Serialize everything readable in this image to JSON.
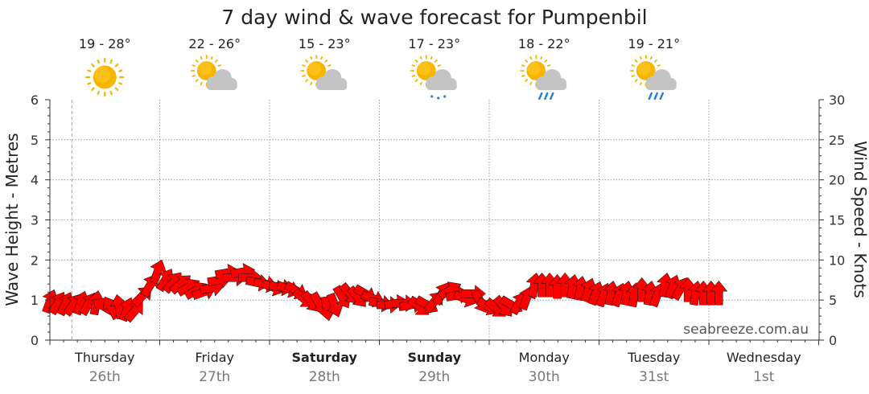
{
  "chart_data": {
    "type": "line",
    "title": "7 day wind & wave forecast for Pumpenbil",
    "ylabel": "Wave Height - Metres",
    "y2label": "Wind Speed - Knots",
    "ylim": [
      0,
      6
    ],
    "yticks": [
      0,
      1,
      2,
      3,
      4,
      5,
      6
    ],
    "y2lim": [
      0,
      30
    ],
    "y2ticks": [
      0,
      5,
      10,
      15,
      20,
      25,
      30
    ],
    "xlim": [
      0,
      7
    ],
    "grid": true,
    "days": [
      {
        "name": "Thursday",
        "date": "26th",
        "bold": false
      },
      {
        "name": "Friday",
        "date": "27th",
        "bold": false
      },
      {
        "name": "Saturday",
        "date": "28th",
        "bold": true
      },
      {
        "name": "Sunday",
        "date": "29th",
        "bold": true
      },
      {
        "name": "Monday",
        "date": "30th",
        "bold": false
      },
      {
        "name": "Tuesday",
        "date": "31st",
        "bold": false
      },
      {
        "name": "Wednesday",
        "date": "1st",
        "bold": false
      }
    ],
    "weather": [
      {
        "temp": "19 - 28°",
        "icon": "sunny-icon"
      },
      {
        "temp": "22 - 26°",
        "icon": "partly-cloudy-icon"
      },
      {
        "temp": "15 - 23°",
        "icon": "partly-cloudy-icon"
      },
      {
        "temp": "17 - 23°",
        "icon": "drizzle-icon"
      },
      {
        "temp": "18 - 22°",
        "icon": "showers-icon"
      },
      {
        "temp": "19 - 21°",
        "icon": "showers-icon"
      }
    ],
    "now_marker_day": 0.2,
    "series": [
      {
        "type": "wind-arrows",
        "units": "knots",
        "color": "#ff0000",
        "points": [
          {
            "day": 0.0,
            "speed": 4.8,
            "dir": 20
          },
          {
            "day": 0.07,
            "speed": 4.6,
            "dir": 30
          },
          {
            "day": 0.14,
            "speed": 4.5,
            "dir": 25
          },
          {
            "day": 0.21,
            "speed": 4.4,
            "dir": 35
          },
          {
            "day": 0.28,
            "speed": 4.6,
            "dir": 20
          },
          {
            "day": 0.35,
            "speed": 4.5,
            "dir": 30
          },
          {
            "day": 0.42,
            "speed": 4.6,
            "dir": 10
          },
          {
            "day": 0.49,
            "speed": 4.2,
            "dir": 300
          },
          {
            "day": 0.56,
            "speed": 4.0,
            "dir": 330
          },
          {
            "day": 0.63,
            "speed": 4.1,
            "dir": 350
          },
          {
            "day": 0.7,
            "speed": 3.8,
            "dir": 20
          },
          {
            "day": 0.77,
            "speed": 3.6,
            "dir": 40
          },
          {
            "day": 0.84,
            "speed": 5.5,
            "dir": 45
          },
          {
            "day": 0.91,
            "speed": 6.8,
            "dir": 30
          },
          {
            "day": 0.98,
            "speed": 8.5,
            "dir": 20
          },
          {
            "day": 1.05,
            "speed": 7.5,
            "dir": 30
          },
          {
            "day": 1.12,
            "speed": 7.2,
            "dir": 40
          },
          {
            "day": 1.19,
            "speed": 7.0,
            "dir": 50
          },
          {
            "day": 1.26,
            "speed": 6.6,
            "dir": 60
          },
          {
            "day": 1.33,
            "speed": 6.2,
            "dir": 60
          },
          {
            "day": 1.4,
            "speed": 6.0,
            "dir": 70
          },
          {
            "day": 1.47,
            "speed": 6.5,
            "dir": 80
          },
          {
            "day": 1.54,
            "speed": 7.5,
            "dir": 80
          },
          {
            "day": 1.61,
            "speed": 8.4,
            "dir": 80
          },
          {
            "day": 1.68,
            "speed": 7.8,
            "dir": 90
          },
          {
            "day": 1.75,
            "speed": 8.5,
            "dir": 80
          },
          {
            "day": 1.82,
            "speed": 7.8,
            "dir": 90
          },
          {
            "day": 1.89,
            "speed": 7.2,
            "dir": 100
          },
          {
            "day": 1.96,
            "speed": 7.0,
            "dir": 100
          },
          {
            "day": 2.03,
            "speed": 6.6,
            "dir": 110
          },
          {
            "day": 2.1,
            "speed": 6.6,
            "dir": 100
          },
          {
            "day": 2.17,
            "speed": 6.4,
            "dir": 110
          },
          {
            "day": 2.24,
            "speed": 6.2,
            "dir": 120
          },
          {
            "day": 2.31,
            "speed": 5.2,
            "dir": 130
          },
          {
            "day": 2.38,
            "speed": 4.8,
            "dir": 140
          },
          {
            "day": 2.45,
            "speed": 4.6,
            "dir": 150
          },
          {
            "day": 2.52,
            "speed": 4.0,
            "dir": 170
          },
          {
            "day": 2.59,
            "speed": 4.4,
            "dir": 160
          },
          {
            "day": 2.66,
            "speed": 5.4,
            "dir": 150
          },
          {
            "day": 2.73,
            "speed": 5.8,
            "dir": 140
          },
          {
            "day": 2.8,
            "speed": 5.4,
            "dir": 140
          },
          {
            "day": 2.87,
            "speed": 5.8,
            "dir": 120
          },
          {
            "day": 2.94,
            "speed": 5.2,
            "dir": 110
          },
          {
            "day": 3.01,
            "speed": 4.6,
            "dir": 100
          },
          {
            "day": 3.08,
            "speed": 4.4,
            "dir": 90
          },
          {
            "day": 3.15,
            "speed": 4.6,
            "dir": 80
          },
          {
            "day": 3.22,
            "speed": 4.6,
            "dir": 90
          },
          {
            "day": 3.29,
            "speed": 4.4,
            "dir": 80
          },
          {
            "day": 3.36,
            "speed": 4.2,
            "dir": 130
          },
          {
            "day": 3.43,
            "speed": 4.4,
            "dir": 120
          },
          {
            "day": 3.5,
            "speed": 4.8,
            "dir": 40
          },
          {
            "day": 3.57,
            "speed": 5.8,
            "dir": 30
          },
          {
            "day": 3.64,
            "speed": 6.2,
            "dir": 60
          },
          {
            "day": 3.71,
            "speed": 5.6,
            "dir": 80
          },
          {
            "day": 3.78,
            "speed": 5.2,
            "dir": 110
          },
          {
            "day": 3.85,
            "speed": 5.8,
            "dir": 90
          },
          {
            "day": 3.92,
            "speed": 4.8,
            "dir": 150
          },
          {
            "day": 3.99,
            "speed": 4.2,
            "dir": 120
          },
          {
            "day": 4.06,
            "speed": 4.0,
            "dir": 130
          },
          {
            "day": 4.13,
            "speed": 4.2,
            "dir": 140
          },
          {
            "day": 4.2,
            "speed": 4.4,
            "dir": 120
          },
          {
            "day": 4.27,
            "speed": 4.6,
            "dir": 30
          },
          {
            "day": 4.34,
            "speed": 5.2,
            "dir": 20
          },
          {
            "day": 4.41,
            "speed": 6.8,
            "dir": 10
          },
          {
            "day": 4.48,
            "speed": 6.8,
            "dir": 0
          },
          {
            "day": 4.55,
            "speed": 6.8,
            "dir": 0
          },
          {
            "day": 4.62,
            "speed": 6.6,
            "dir": 0
          },
          {
            "day": 4.69,
            "speed": 6.8,
            "dir": 0
          },
          {
            "day": 4.76,
            "speed": 6.6,
            "dir": 10
          },
          {
            "day": 4.83,
            "speed": 6.4,
            "dir": 10
          },
          {
            "day": 4.9,
            "speed": 6.2,
            "dir": 20
          },
          {
            "day": 4.97,
            "speed": 5.8,
            "dir": 20
          },
          {
            "day": 5.04,
            "speed": 5.6,
            "dir": 20
          },
          {
            "day": 5.11,
            "speed": 5.8,
            "dir": 10
          },
          {
            "day": 5.18,
            "speed": 5.6,
            "dir": 20
          },
          {
            "day": 5.25,
            "speed": 5.8,
            "dir": 10
          },
          {
            "day": 5.32,
            "speed": 5.6,
            "dir": 10
          },
          {
            "day": 5.39,
            "speed": 6.2,
            "dir": 0
          },
          {
            "day": 5.46,
            "speed": 5.8,
            "dir": 10
          },
          {
            "day": 5.53,
            "speed": 5.6,
            "dir": 20
          },
          {
            "day": 5.6,
            "speed": 6.8,
            "dir": 10
          },
          {
            "day": 5.67,
            "speed": 6.6,
            "dir": 20
          },
          {
            "day": 5.74,
            "speed": 6.4,
            "dir": 30
          },
          {
            "day": 5.81,
            "speed": 6.2,
            "dir": 0
          },
          {
            "day": 5.88,
            "speed": 5.8,
            "dir": 10
          },
          {
            "day": 5.95,
            "speed": 5.8,
            "dir": 0
          },
          {
            "day": 6.02,
            "speed": 5.8,
            "dir": 0
          },
          {
            "day": 6.09,
            "speed": 5.8,
            "dir": 0
          }
        ]
      }
    ]
  },
  "watermark": "seabreeze.com.au"
}
